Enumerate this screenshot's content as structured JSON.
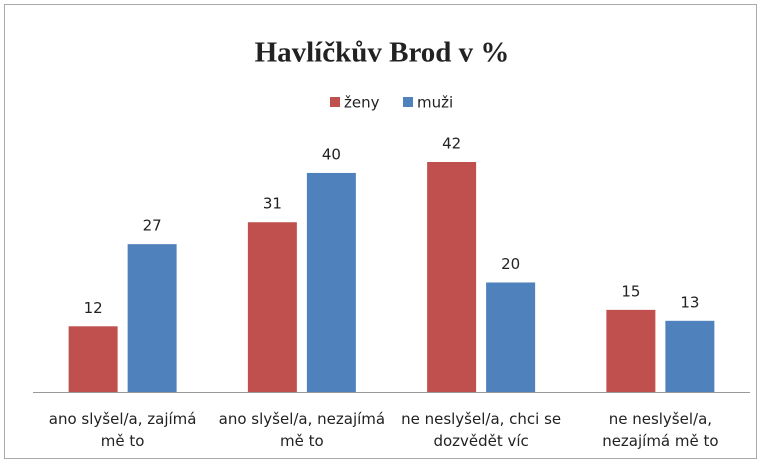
{
  "chart_data": {
    "type": "bar",
    "title": "Havlíčkův Brod v %",
    "categories": [
      "ano slyšel/a, zajímá mě to",
      "ano slyšel/a, nezajímá mě to",
      "ne neslyšel/a, chci se dozvědět víc",
      "ne neslyšel/a, nezajímá mě to"
    ],
    "series": [
      {
        "name": "ženy",
        "color": "#c0504d",
        "values": [
          12,
          31,
          42,
          15
        ]
      },
      {
        "name": "muži",
        "color": "#4f81bd",
        "values": [
          27,
          40,
          20,
          13
        ]
      }
    ],
    "legend": "top"
  }
}
